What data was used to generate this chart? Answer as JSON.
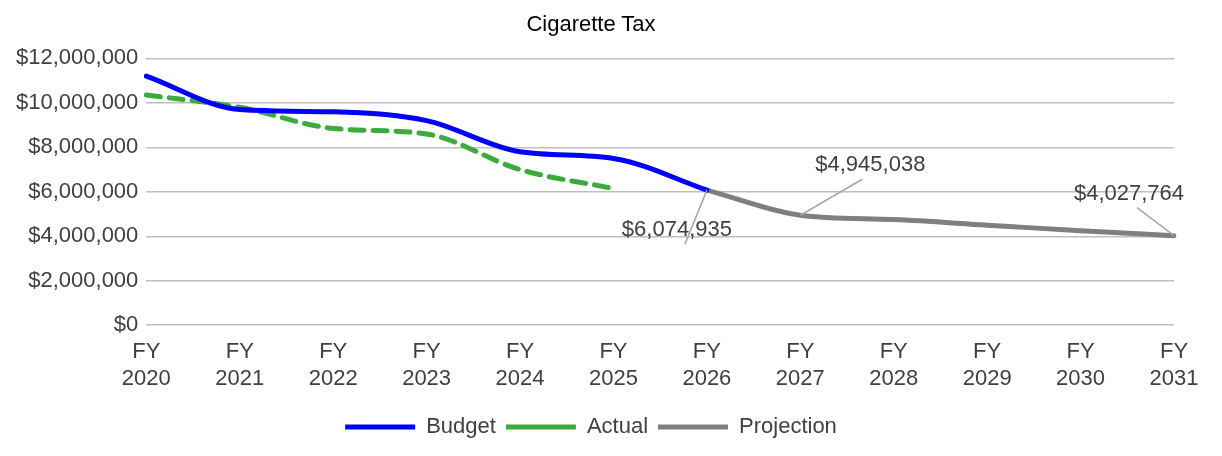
{
  "chart_data": {
    "type": "line",
    "title": "Cigarette Tax",
    "categories": [
      "FY 2020",
      "FY 2021",
      "FY 2022",
      "FY 2023",
      "FY 2024",
      "FY 2025",
      "FY 2026",
      "FY 2027",
      "FY 2028",
      "FY 2029",
      "FY 2030",
      "FY 2031"
    ],
    "series": [
      {
        "name": "Budget",
        "color": "#0000ff",
        "line_style": "solid",
        "values": [
          11200000,
          9700000,
          9600000,
          9200000,
          7800000,
          7500000,
          6074935,
          null,
          null,
          null,
          null,
          null
        ]
      },
      {
        "name": "Actual",
        "color": "#3cab3c",
        "line_style": "dashed",
        "values": [
          10350000,
          9800000,
          8850000,
          8600000,
          7000000,
          6150000,
          null,
          null,
          null,
          null,
          null,
          null
        ]
      },
      {
        "name": "Projection",
        "color": "#7f7f7f",
        "line_style": "solid",
        "values": [
          null,
          null,
          null,
          null,
          null,
          null,
          6074935,
          4945038,
          4750000,
          4500000,
          4250000,
          4027764
        ]
      }
    ],
    "ylim": [
      0,
      12000000
    ],
    "yticks": [
      {
        "value": 0,
        "label": "$0"
      },
      {
        "value": 2000000,
        "label": "$2,000,000"
      },
      {
        "value": 4000000,
        "label": "$4,000,000"
      },
      {
        "value": 6000000,
        "label": "$6,000,000"
      },
      {
        "value": 8000000,
        "label": "$8,000,000"
      },
      {
        "value": 10000000,
        "label": "$10,000,000"
      },
      {
        "value": 12000000,
        "label": "$12,000,000"
      }
    ],
    "grid": "y",
    "legend": "bottom",
    "marker": "none",
    "annotations": [
      {
        "text": "$6,074,935",
        "x": "FY 2026",
        "y": 6074935
      },
      {
        "text": "$4,945,038",
        "x": "FY 2027",
        "y": 4945038
      },
      {
        "text": "$4,027,764",
        "x": "FY 2031",
        "y": 4027764
      }
    ]
  }
}
